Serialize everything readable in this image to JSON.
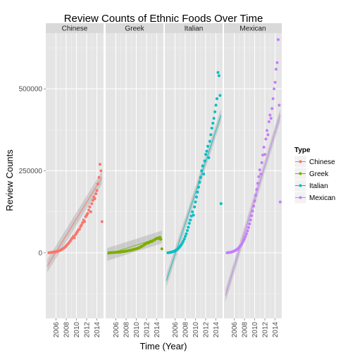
{
  "chart_data": {
    "type": "scatter",
    "title": "Review Counts of Ethnic Foods Over Time",
    "xlabel": "Time (Year)",
    "ylabel": "Review Counts",
    "xlim": [
      2004.0,
      2015.3
    ],
    "ylim": [
      -200000,
      670000
    ],
    "x_ticks": [
      2006,
      2008,
      2010,
      2012,
      2014
    ],
    "x_tick_labels": [
      "2006",
      "2008",
      "2010",
      "2012",
      "2014"
    ],
    "y_ticks": [
      0,
      250000,
      500000
    ],
    "y_tick_labels": [
      "0",
      "250000",
      "500000"
    ],
    "grid": true,
    "legend": {
      "title": "Type",
      "position": "right"
    },
    "facets": [
      "Chinese",
      "Greek",
      "Italian",
      "Mexican"
    ],
    "series": [
      {
        "name": "Chinese",
        "color": "#F8766D",
        "trend": {
          "x0": 2004.3,
          "y0": -40000,
          "x1": 2015.0,
          "y1": 230000
        },
        "points": [
          [
            2004.6,
            0
          ],
          [
            2004.8,
            500
          ],
          [
            2005.0,
            1000
          ],
          [
            2005.2,
            1500
          ],
          [
            2005.4,
            2000
          ],
          [
            2005.6,
            2500
          ],
          [
            2005.8,
            3000
          ],
          [
            2006.0,
            3500
          ],
          [
            2006.2,
            4000
          ],
          [
            2006.4,
            5000
          ],
          [
            2006.6,
            6000
          ],
          [
            2006.8,
            7500
          ],
          [
            2007.0,
            9000
          ],
          [
            2007.2,
            11000
          ],
          [
            2007.4,
            13000
          ],
          [
            2007.6,
            15000
          ],
          [
            2007.8,
            18000
          ],
          [
            2008.0,
            21000
          ],
          [
            2008.2,
            25000
          ],
          [
            2008.4,
            28000
          ],
          [
            2008.6,
            32000
          ],
          [
            2008.8,
            36000
          ],
          [
            2009.0,
            41000
          ],
          [
            2009.2,
            45000
          ],
          [
            2009.4,
            50000
          ],
          [
            2009.6,
            46000
          ],
          [
            2009.8,
            55000
          ],
          [
            2010.0,
            60000
          ],
          [
            2010.2,
            65000
          ],
          [
            2010.4,
            70000
          ],
          [
            2010.6,
            72000
          ],
          [
            2010.8,
            80000
          ],
          [
            2011.0,
            85000
          ],
          [
            2011.2,
            92000
          ],
          [
            2011.4,
            100000
          ],
          [
            2011.6,
            95000
          ],
          [
            2011.8,
            110000
          ],
          [
            2012.0,
            115000
          ],
          [
            2012.2,
            120000
          ],
          [
            2012.4,
            130000
          ],
          [
            2012.6,
            140000
          ],
          [
            2012.8,
            125000
          ],
          [
            2013.0,
            150000
          ],
          [
            2013.2,
            160000
          ],
          [
            2013.4,
            170000
          ],
          [
            2013.6,
            165000
          ],
          [
            2013.8,
            180000
          ],
          [
            2014.0,
            190000
          ],
          [
            2014.2,
            210000
          ],
          [
            2014.4,
            230000
          ],
          [
            2014.6,
            270000
          ],
          [
            2014.8,
            250000
          ],
          [
            2015.0,
            95000
          ]
        ]
      },
      {
        "name": "Greek",
        "color": "#7CAE00",
        "trend": {
          "x0": 2004.3,
          "y0": -5000,
          "x1": 2015.0,
          "y1": 48000
        },
        "points": [
          [
            2004.6,
            0
          ],
          [
            2004.8,
            200
          ],
          [
            2005.0,
            400
          ],
          [
            2005.2,
            600
          ],
          [
            2005.4,
            800
          ],
          [
            2005.6,
            1000
          ],
          [
            2005.8,
            1200
          ],
          [
            2006.0,
            1500
          ],
          [
            2006.2,
            1800
          ],
          [
            2006.4,
            2000
          ],
          [
            2006.6,
            2300
          ],
          [
            2006.8,
            2600
          ],
          [
            2007.0,
            3000
          ],
          [
            2007.2,
            3400
          ],
          [
            2007.4,
            3800
          ],
          [
            2007.6,
            4200
          ],
          [
            2007.8,
            4700
          ],
          [
            2008.0,
            5200
          ],
          [
            2008.2,
            5800
          ],
          [
            2008.4,
            6400
          ],
          [
            2008.6,
            7000
          ],
          [
            2008.8,
            7600
          ],
          [
            2009.0,
            8300
          ],
          [
            2009.2,
            9000
          ],
          [
            2009.4,
            9800
          ],
          [
            2009.6,
            10500
          ],
          [
            2009.8,
            11500
          ],
          [
            2010.0,
            12500
          ],
          [
            2010.2,
            13500
          ],
          [
            2010.4,
            14500
          ],
          [
            2010.6,
            16000
          ],
          [
            2010.8,
            17500
          ],
          [
            2011.0,
            19000
          ],
          [
            2011.2,
            21000
          ],
          [
            2011.4,
            23000
          ],
          [
            2011.6,
            25000
          ],
          [
            2011.8,
            27000
          ],
          [
            2012.0,
            29000
          ],
          [
            2012.2,
            31000
          ],
          [
            2012.4,
            30000
          ],
          [
            2012.6,
            33000
          ],
          [
            2012.8,
            35000
          ],
          [
            2013.0,
            34000
          ],
          [
            2013.2,
            37000
          ],
          [
            2013.4,
            38000
          ],
          [
            2013.6,
            40000
          ],
          [
            2013.8,
            42000
          ],
          [
            2014.0,
            44000
          ],
          [
            2014.2,
            45000
          ],
          [
            2014.4,
            43000
          ],
          [
            2014.6,
            47000
          ],
          [
            2014.8,
            41000
          ],
          [
            2015.0,
            12000
          ]
        ]
      },
      {
        "name": "Italian",
        "color": "#00BFC4",
        "trend": {
          "x0": 2004.3,
          "y0": -85000,
          "x1": 2015.0,
          "y1": 420000
        },
        "points": [
          [
            2004.6,
            0
          ],
          [
            2004.8,
            500
          ],
          [
            2005.0,
            1000
          ],
          [
            2005.2,
            1800
          ],
          [
            2005.4,
            2500
          ],
          [
            2005.6,
            3500
          ],
          [
            2005.8,
            4500
          ],
          [
            2006.0,
            6000
          ],
          [
            2006.2,
            8000
          ],
          [
            2006.4,
            10000
          ],
          [
            2006.6,
            13000
          ],
          [
            2006.8,
            16000
          ],
          [
            2007.0,
            20000
          ],
          [
            2007.2,
            24000
          ],
          [
            2007.4,
            29000
          ],
          [
            2007.6,
            35000
          ],
          [
            2007.8,
            42000
          ],
          [
            2008.0,
            50000
          ],
          [
            2008.2,
            58000
          ],
          [
            2008.4,
            68000
          ],
          [
            2008.6,
            78000
          ],
          [
            2008.8,
            90000
          ],
          [
            2009.0,
            100000
          ],
          [
            2009.2,
            112000
          ],
          [
            2009.4,
            125000
          ],
          [
            2009.6,
            115000
          ],
          [
            2009.8,
            140000
          ],
          [
            2010.0,
            155000
          ],
          [
            2010.2,
            170000
          ],
          [
            2010.4,
            185000
          ],
          [
            2010.6,
            200000
          ],
          [
            2010.8,
            215000
          ],
          [
            2011.0,
            230000
          ],
          [
            2011.2,
            250000
          ],
          [
            2011.4,
            265000
          ],
          [
            2011.6,
            240000
          ],
          [
            2011.8,
            280000
          ],
          [
            2012.0,
            300000
          ],
          [
            2012.2,
            310000
          ],
          [
            2012.4,
            325000
          ],
          [
            2012.6,
            290000
          ],
          [
            2012.8,
            340000
          ],
          [
            2013.0,
            360000
          ],
          [
            2013.2,
            380000
          ],
          [
            2013.4,
            395000
          ],
          [
            2013.6,
            410000
          ],
          [
            2013.8,
            430000
          ],
          [
            2014.0,
            450000
          ],
          [
            2014.2,
            470000
          ],
          [
            2014.4,
            550000
          ],
          [
            2014.6,
            540000
          ],
          [
            2014.8,
            480000
          ],
          [
            2015.0,
            150000
          ]
        ]
      },
      {
        "name": "Mexican",
        "color": "#C77CFF",
        "trend": {
          "x0": 2004.3,
          "y0": -130000,
          "x1": 2015.0,
          "y1": 420000
        },
        "points": [
          [
            2004.6,
            0
          ],
          [
            2004.8,
            500
          ],
          [
            2005.0,
            1000
          ],
          [
            2005.2,
            1500
          ],
          [
            2005.4,
            2000
          ],
          [
            2005.6,
            3000
          ],
          [
            2005.8,
            4000
          ],
          [
            2006.0,
            5500
          ],
          [
            2006.2,
            7000
          ],
          [
            2006.4,
            9000
          ],
          [
            2006.6,
            11000
          ],
          [
            2006.8,
            14000
          ],
          [
            2007.0,
            17000
          ],
          [
            2007.2,
            21000
          ],
          [
            2007.4,
            25000
          ],
          [
            2007.6,
            30000
          ],
          [
            2007.8,
            36000
          ],
          [
            2008.0,
            43000
          ],
          [
            2008.2,
            50000
          ],
          [
            2008.4,
            58000
          ],
          [
            2008.6,
            67000
          ],
          [
            2008.8,
            77000
          ],
          [
            2009.0,
            88000
          ],
          [
            2009.2,
            100000
          ],
          [
            2009.4,
            113000
          ],
          [
            2009.6,
            127000
          ],
          [
            2009.8,
            142000
          ],
          [
            2010.0,
            158000
          ],
          [
            2010.2,
            175000
          ],
          [
            2010.4,
            193000
          ],
          [
            2010.6,
            212000
          ],
          [
            2010.8,
            232000
          ],
          [
            2011.0,
            253000
          ],
          [
            2011.2,
            240000
          ],
          [
            2011.4,
            275000
          ],
          [
            2011.6,
            298000
          ],
          [
            2011.8,
            322000
          ],
          [
            2012.0,
            300000
          ],
          [
            2012.2,
            347000
          ],
          [
            2012.4,
            373000
          ],
          [
            2012.6,
            360000
          ],
          [
            2012.8,
            400000
          ],
          [
            2013.0,
            420000
          ],
          [
            2013.2,
            410000
          ],
          [
            2013.4,
            440000
          ],
          [
            2013.6,
            470000
          ],
          [
            2013.8,
            500000
          ],
          [
            2014.0,
            520000
          ],
          [
            2014.2,
            560000
          ],
          [
            2014.4,
            580000
          ],
          [
            2014.6,
            650000
          ],
          [
            2014.8,
            450000
          ],
          [
            2015.0,
            155000
          ]
        ]
      }
    ]
  }
}
